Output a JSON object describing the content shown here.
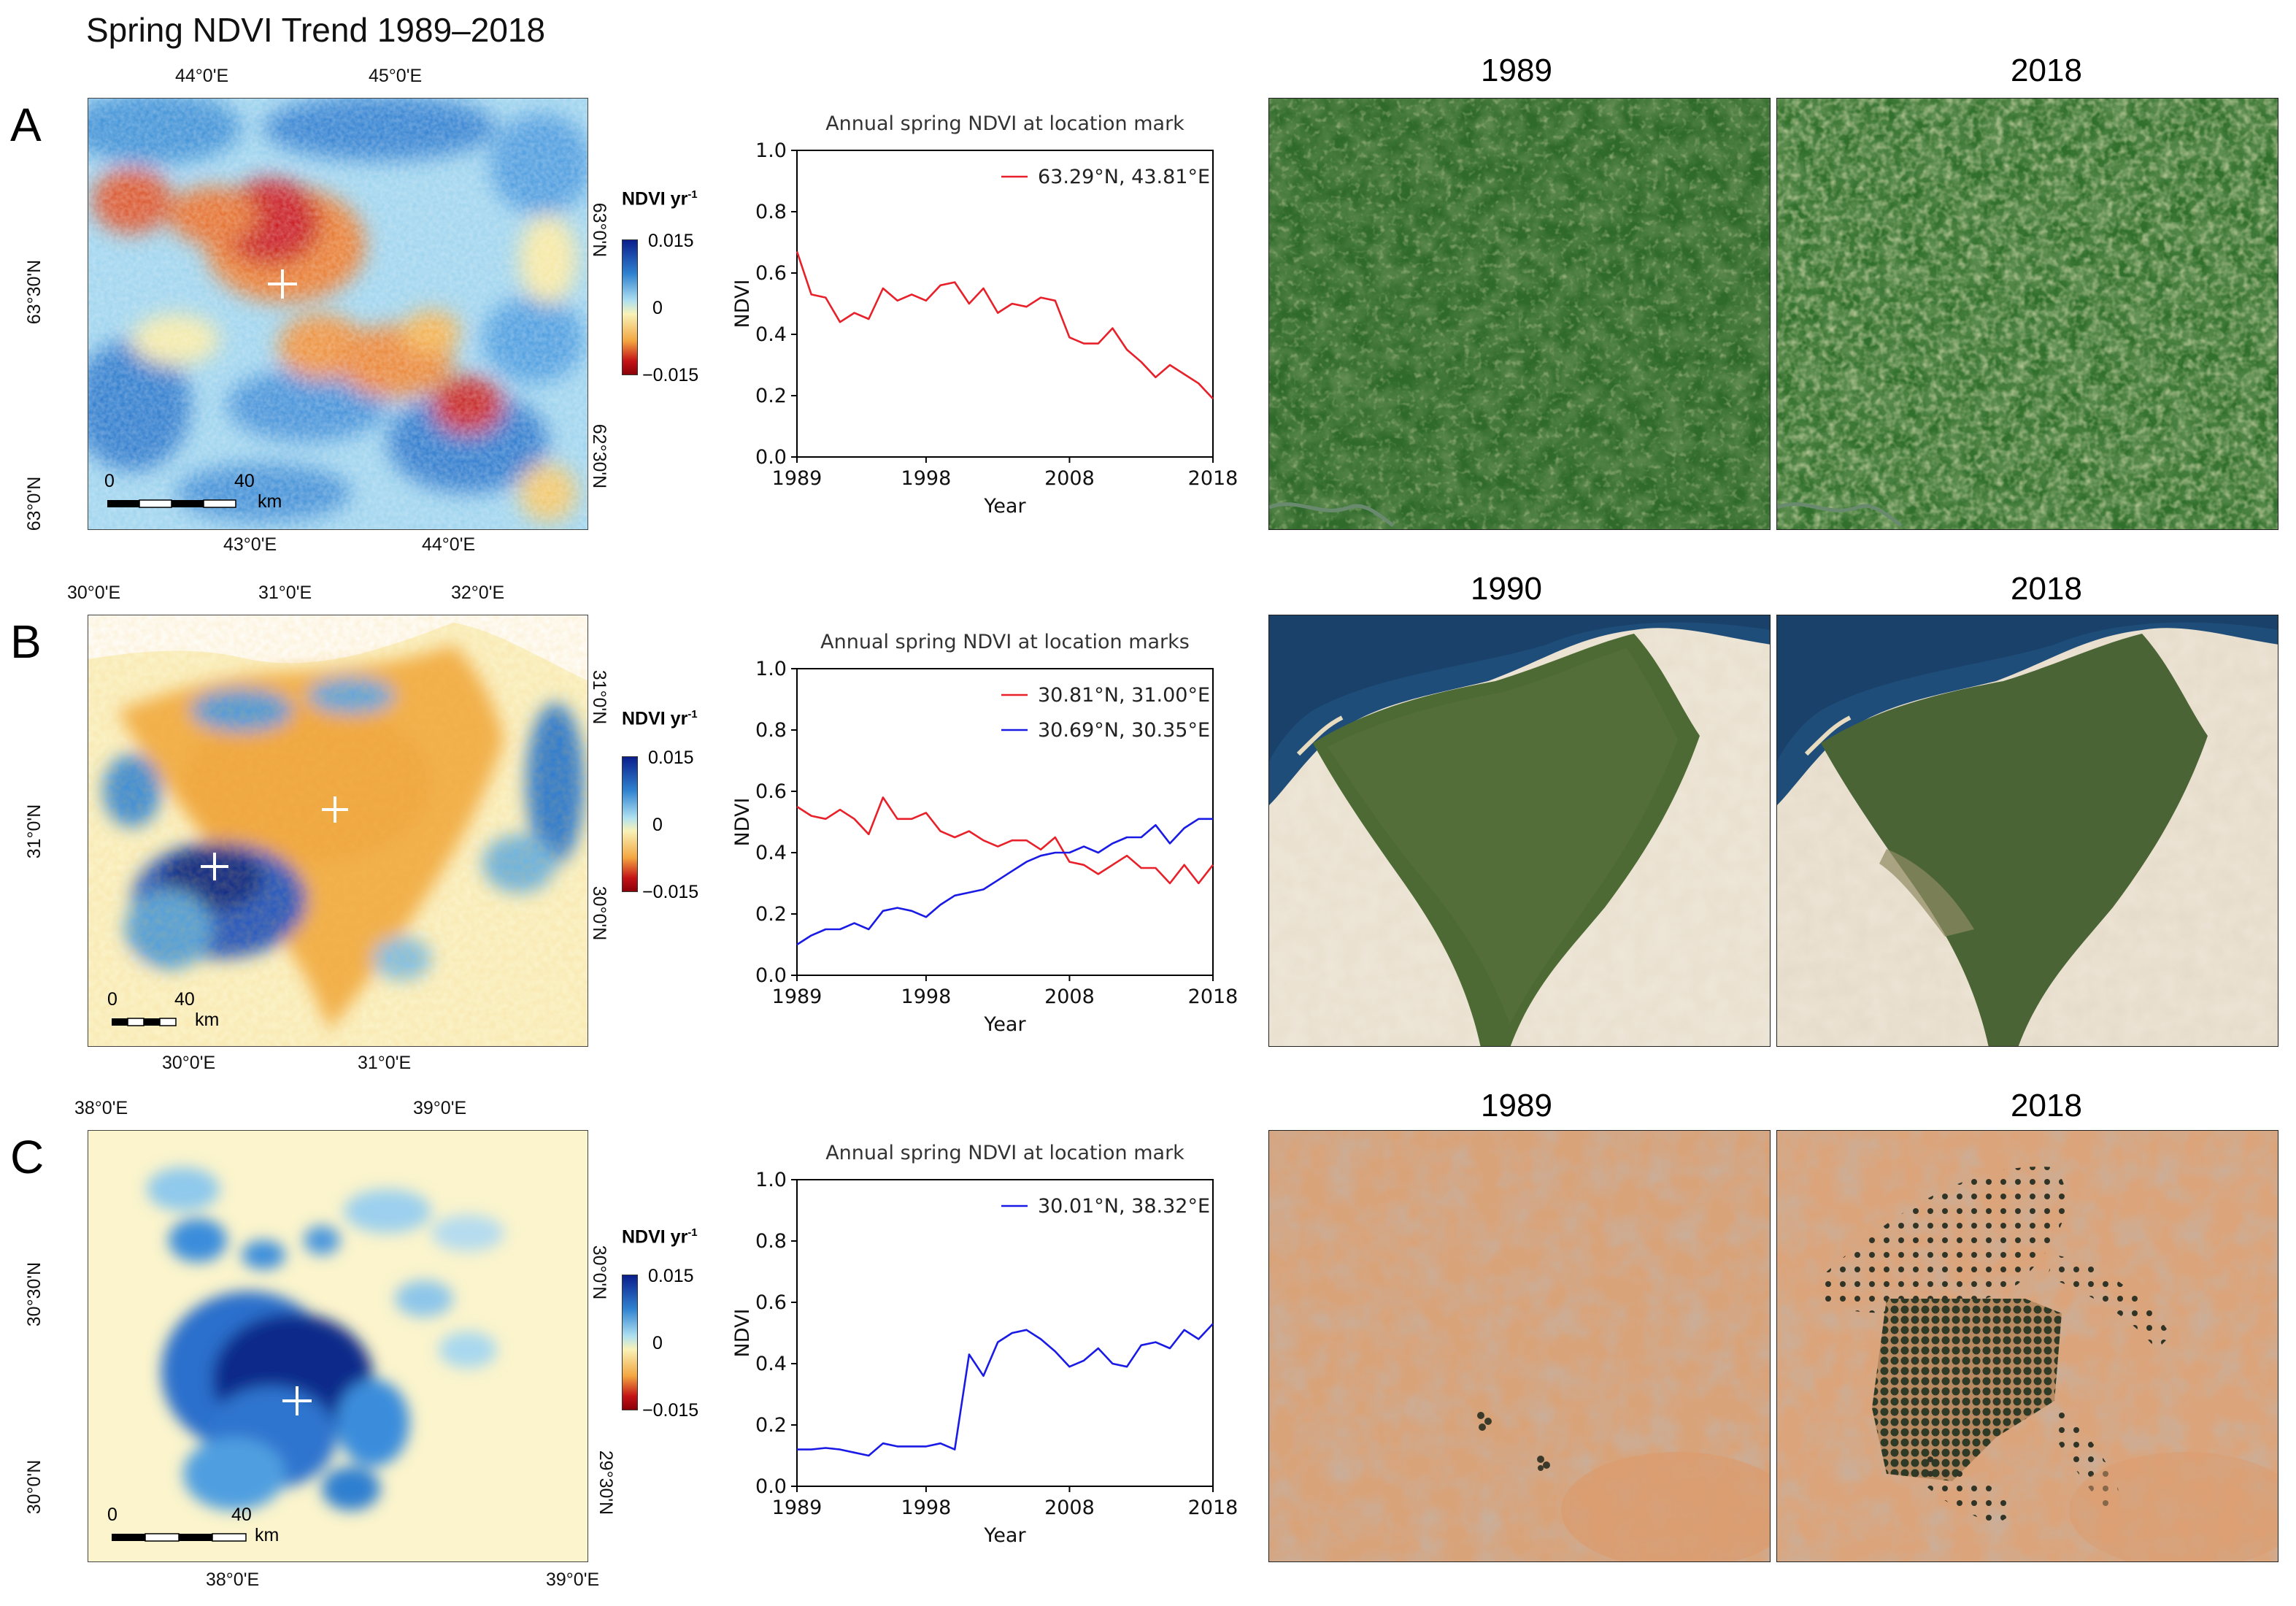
{
  "title": "Spring NDVI Trend 1989–2018",
  "colorbar": {
    "label": "NDVI yr",
    "label_sup": "-1",
    "max": "0.015",
    "mid": "0",
    "min": "−0.015"
  },
  "scalebar": {
    "zero": "0",
    "forty": "40",
    "unit": "km"
  },
  "panels": [
    {
      "label": "A",
      "top_ticks": [
        "44°0'E",
        "45°0'E"
      ],
      "bottom_ticks": [
        "43°0'E",
        "44°0'E"
      ],
      "left_ticks": [
        "63°30'N",
        "63°0'N"
      ],
      "right_ticks": [
        "63°0'N",
        "62°30'N"
      ],
      "sat_years": [
        "1989",
        "2018"
      ]
    },
    {
      "label": "B",
      "top_ticks": [
        "30°0'E",
        "31°0'E",
        "32°0'E"
      ],
      "bottom_ticks": [
        "30°0'E",
        "31°0'E"
      ],
      "left_ticks": [
        "31°0'N"
      ],
      "right_ticks": [
        "31°0'N",
        "30°0'N"
      ],
      "sat_years": [
        "1990",
        "2018"
      ]
    },
    {
      "label": "C",
      "top_ticks": [
        "38°0'E",
        "39°0'E"
      ],
      "bottom_ticks": [
        "38°0'E",
        "39°0'E"
      ],
      "left_ticks": [
        "30°30'N",
        "30°0'N"
      ],
      "right_ticks": [
        "30°0'N",
        "29°30'N"
      ],
      "sat_years": [
        "1989",
        "2018"
      ]
    }
  ],
  "chart_data": [
    {
      "type": "line",
      "title": "Annual spring NDVI at location mark",
      "xlabel": "Year",
      "ylabel": "NDVI",
      "xlim": [
        1989,
        2018
      ],
      "ylim": [
        0.0,
        1.0
      ],
      "xticks": [
        "1989",
        "1998",
        "2008",
        "2018"
      ],
      "yticks": [
        "0.0",
        "0.2",
        "0.4",
        "0.6",
        "0.8",
        "1.0"
      ],
      "series": [
        {
          "name": "63.29°N, 43.81°E",
          "color": "#e8202a",
          "x": [
            1989,
            1990,
            1991,
            1992,
            1993,
            1994,
            1995,
            1996,
            1997,
            1998,
            1999,
            2000,
            2001,
            2002,
            2003,
            2004,
            2005,
            2006,
            2007,
            2008,
            2009,
            2010,
            2011,
            2012,
            2013,
            2014,
            2015,
            2016,
            2017,
            2018
          ],
          "values": [
            0.67,
            0.53,
            0.52,
            0.44,
            0.47,
            0.45,
            0.55,
            0.51,
            0.53,
            0.51,
            0.56,
            0.57,
            0.5,
            0.55,
            0.47,
            0.5,
            0.49,
            0.52,
            0.51,
            0.39,
            0.37,
            0.37,
            0.42,
            0.35,
            0.31,
            0.26,
            0.3,
            0.27,
            0.24,
            0.19
          ]
        }
      ]
    },
    {
      "type": "line",
      "title": "Annual spring NDVI at location marks",
      "xlabel": "Year",
      "ylabel": "NDVI",
      "xlim": [
        1989,
        2018
      ],
      "ylim": [
        0.0,
        1.0
      ],
      "xticks": [
        "1989",
        "1998",
        "2008",
        "2018"
      ],
      "yticks": [
        "0.0",
        "0.2",
        "0.4",
        "0.6",
        "0.8",
        "1.0"
      ],
      "series": [
        {
          "name": "30.81°N, 31.00°E",
          "color": "#e8202a",
          "x": [
            1989,
            1990,
            1991,
            1992,
            1993,
            1994,
            1995,
            1996,
            1997,
            1998,
            1999,
            2000,
            2001,
            2002,
            2003,
            2004,
            2005,
            2006,
            2007,
            2008,
            2009,
            2010,
            2011,
            2012,
            2013,
            2014,
            2015,
            2016,
            2017,
            2018
          ],
          "values": [
            0.55,
            0.52,
            0.51,
            0.54,
            0.51,
            0.46,
            0.58,
            0.51,
            0.51,
            0.53,
            0.47,
            0.45,
            0.47,
            0.44,
            0.42,
            0.44,
            0.44,
            0.41,
            0.45,
            0.37,
            0.36,
            0.33,
            0.36,
            0.39,
            0.35,
            0.35,
            0.3,
            0.36,
            0.3,
            0.36
          ]
        },
        {
          "name": "30.69°N, 30.35°E",
          "color": "#1a1ae6",
          "x": [
            1989,
            1990,
            1991,
            1992,
            1993,
            1994,
            1995,
            1996,
            1997,
            1998,
            1999,
            2000,
            2001,
            2002,
            2003,
            2004,
            2005,
            2006,
            2007,
            2008,
            2009,
            2010,
            2011,
            2012,
            2013,
            2014,
            2015,
            2016,
            2017,
            2018
          ],
          "values": [
            0.1,
            0.13,
            0.15,
            0.15,
            0.17,
            0.15,
            0.21,
            0.22,
            0.21,
            0.19,
            0.23,
            0.26,
            0.27,
            0.28,
            0.31,
            0.34,
            0.37,
            0.39,
            0.4,
            0.4,
            0.42,
            0.4,
            0.43,
            0.45,
            0.45,
            0.49,
            0.43,
            0.48,
            0.51,
            0.51
          ]
        }
      ]
    },
    {
      "type": "line",
      "title": "Annual spring NDVI at location mark",
      "xlabel": "Year",
      "ylabel": "NDVI",
      "xlim": [
        1989,
        2018
      ],
      "ylim": [
        0.0,
        1.0
      ],
      "xticks": [
        "1989",
        "1998",
        "2008",
        "2018"
      ],
      "yticks": [
        "0.0",
        "0.2",
        "0.4",
        "0.6",
        "0.8",
        "1.0"
      ],
      "series": [
        {
          "name": "30.01°N, 38.32°E",
          "color": "#1a1ae6",
          "x": [
            1989,
            1990,
            1991,
            1992,
            1993,
            1994,
            1995,
            1996,
            1997,
            1998,
            1999,
            2000,
            2001,
            2002,
            2003,
            2004,
            2005,
            2006,
            2007,
            2008,
            2009,
            2010,
            2011,
            2012,
            2013,
            2014,
            2015,
            2016,
            2017,
            2018
          ],
          "values": [
            0.12,
            0.12,
            0.125,
            0.12,
            0.11,
            0.1,
            0.14,
            0.13,
            0.13,
            0.13,
            0.14,
            0.12,
            0.43,
            0.36,
            0.47,
            0.5,
            0.51,
            0.48,
            0.44,
            0.39,
            0.41,
            0.45,
            0.4,
            0.39,
            0.46,
            0.47,
            0.45,
            0.51,
            0.48,
            0.53
          ]
        }
      ]
    }
  ]
}
